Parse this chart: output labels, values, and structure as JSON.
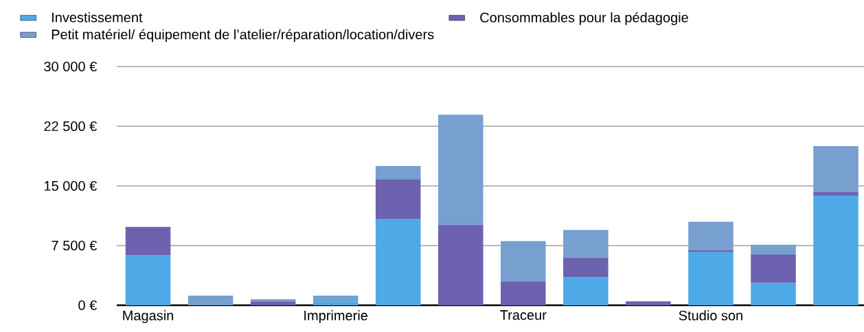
{
  "chart_data": {
    "type": "bar",
    "stacked": true,
    "categories": [
      "Magasin",
      null,
      null,
      "Imprimerie",
      null,
      null,
      "Traceur",
      null,
      null,
      "Studio son",
      null,
      null
    ],
    "series": [
      {
        "name": "Investissement",
        "color": "#4daae6",
        "values": [
          6250,
          0,
          0,
          500,
          10800,
          0,
          0,
          3500,
          0,
          6650,
          2800,
          13800
        ]
      },
      {
        "name": "Consommables pour la pédagogie",
        "color": "#6d62b0",
        "values": [
          3600,
          0,
          500,
          0,
          5050,
          10100,
          3000,
          2500,
          500,
          250,
          3600,
          450
        ]
      },
      {
        "name": "Petit matériel/ équipement de l’atelier/réparation/location/divers",
        "color": "#779fd0",
        "values": [
          0,
          1200,
          250,
          700,
          1650,
          13850,
          5050,
          3450,
          0,
          3600,
          1200,
          5750
        ]
      }
    ],
    "ylim": [
      0,
      30000
    ],
    "yticks": [
      {
        "value": 0,
        "label": "0 €"
      },
      {
        "value": 7500,
        "label": "7 500 €"
      },
      {
        "value": 15000,
        "label": "15 000 €"
      },
      {
        "value": 22500,
        "label": "22 500 €"
      },
      {
        "value": 30000,
        "label": "30 000 €"
      }
    ],
    "grid": "y",
    "legend": "top"
  }
}
